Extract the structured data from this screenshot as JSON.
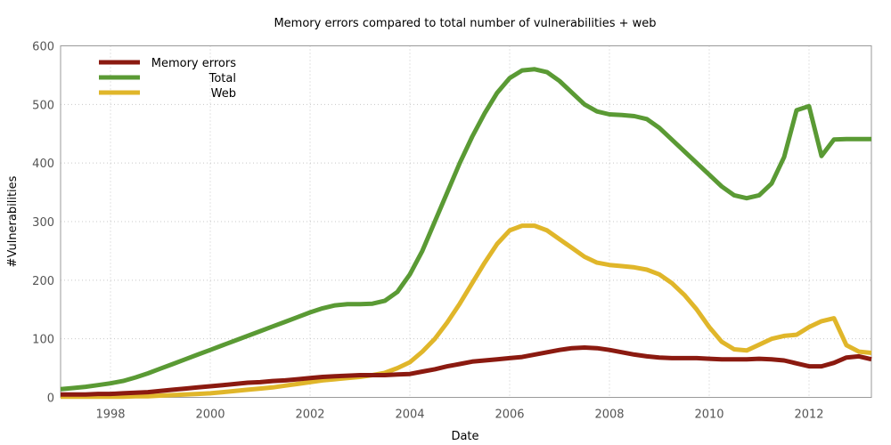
{
  "chart_data": {
    "type": "line",
    "title": "Memory errors compared to total number of vulnerabilities + web",
    "xlabel": "Date",
    "ylabel": "#Vulnerabilities",
    "xlim": [
      1997,
      2013.25
    ],
    "ylim": [
      0,
      600
    ],
    "xticks": [
      1998,
      2000,
      2002,
      2004,
      2006,
      2008,
      2010,
      2012
    ],
    "yticks": [
      0,
      100,
      200,
      300,
      400,
      500,
      600
    ],
    "grid": true,
    "legend_position": "top-left",
    "x": [
      1997.0,
      1997.25,
      1997.5,
      1997.75,
      1998.0,
      1998.25,
      1998.5,
      1998.75,
      1999.0,
      1999.25,
      1999.5,
      1999.75,
      2000.0,
      2000.25,
      2000.5,
      2000.75,
      2001.0,
      2001.25,
      2001.5,
      2001.75,
      2002.0,
      2002.25,
      2002.5,
      2002.75,
      2003.0,
      2003.25,
      2003.5,
      2003.75,
      2004.0,
      2004.25,
      2004.5,
      2004.75,
      2005.0,
      2005.25,
      2005.5,
      2005.75,
      2006.0,
      2006.25,
      2006.5,
      2006.75,
      2007.0,
      2007.25,
      2007.5,
      2007.75,
      2008.0,
      2008.25,
      2008.5,
      2008.75,
      2009.0,
      2009.25,
      2009.5,
      2009.75,
      2010.0,
      2010.25,
      2010.5,
      2010.75,
      2011.0,
      2011.25,
      2011.5,
      2011.75,
      2012.0,
      2012.25,
      2012.5,
      2012.75,
      2013.0,
      2013.25
    ],
    "series": [
      {
        "name": "Memory errors",
        "color": "#8b1a10",
        "values": [
          5,
          5,
          5,
          6,
          6,
          7,
          8,
          9,
          11,
          13,
          15,
          17,
          19,
          21,
          23,
          25,
          26,
          28,
          29,
          31,
          33,
          35,
          36,
          37,
          38,
          38,
          38,
          39,
          40,
          44,
          48,
          53,
          57,
          61,
          63,
          65,
          67,
          69,
          73,
          77,
          81,
          84,
          85,
          84,
          81,
          77,
          73,
          70,
          68,
          67,
          67,
          67,
          66,
          65,
          65,
          65,
          66,
          65,
          63,
          58,
          53,
          53,
          59,
          68,
          70,
          65
        ]
      },
      {
        "name": "Total",
        "color": "#5a9a34",
        "values": [
          14,
          16,
          18,
          21,
          24,
          28,
          34,
          41,
          49,
          57,
          65,
          73,
          81,
          89,
          97,
          105,
          113,
          121,
          129,
          137,
          145,
          152,
          157,
          159,
          159,
          160,
          165,
          180,
          210,
          250,
          300,
          350,
          400,
          445,
          485,
          520,
          545,
          558,
          560,
          555,
          540,
          520,
          500,
          488,
          483,
          482,
          480,
          475,
          460,
          440,
          420,
          400,
          380,
          360,
          345,
          340,
          345,
          365,
          410,
          490,
          497,
          412,
          440,
          441,
          441,
          441
        ]
      },
      {
        "name": "Web",
        "color": "#e0b62a",
        "values": [
          1,
          1,
          1,
          1,
          1,
          1,
          2,
          2,
          3,
          4,
          5,
          6,
          7,
          9,
          11,
          13,
          15,
          17,
          20,
          23,
          26,
          29,
          31,
          33,
          35,
          38,
          42,
          50,
          60,
          78,
          100,
          128,
          160,
          195,
          230,
          262,
          285,
          293,
          293,
          285,
          270,
          255,
          240,
          230,
          226,
          224,
          222,
          218,
          210,
          195,
          175,
          150,
          120,
          95,
          82,
          80,
          90,
          100,
          105,
          107,
          120,
          130,
          135,
          89,
          78,
          76
        ]
      }
    ]
  }
}
